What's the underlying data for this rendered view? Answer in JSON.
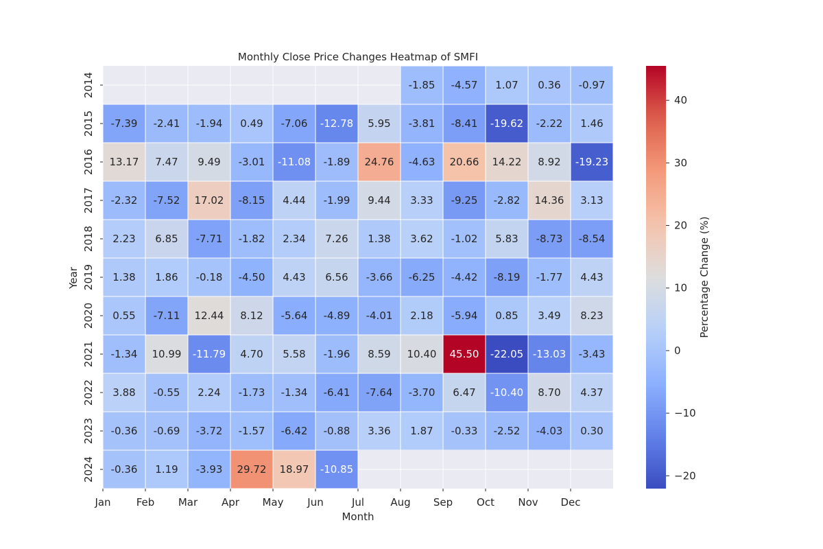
{
  "chart_data": {
    "type": "heatmap",
    "title": "Monthly Close Price Changes Heatmap of SMFI",
    "xlabel": "Month",
    "ylabel": "Year",
    "x_tick_labels": [
      "Jan",
      "Feb",
      "Mar",
      "Apr",
      "May",
      "Jun",
      "Jul",
      "Aug",
      "Sep",
      "Oct",
      "Nov",
      "Dec"
    ],
    "y_tick_labels": [
      "2014",
      "2015",
      "2016",
      "2017",
      "2018",
      "2019",
      "2020",
      "2021",
      "2022",
      "2023",
      "2024"
    ],
    "values": [
      [
        null,
        null,
        null,
        null,
        null,
        null,
        null,
        -1.85,
        -4.57,
        1.07,
        0.36,
        -0.97
      ],
      [
        -7.39,
        -2.41,
        -1.94,
        0.49,
        -7.06,
        -12.78,
        5.95,
        -3.81,
        -8.41,
        -19.62,
        -2.22,
        1.46
      ],
      [
        13.17,
        7.47,
        9.49,
        -3.01,
        -11.08,
        -1.89,
        24.76,
        -4.63,
        20.66,
        14.22,
        8.92,
        -19.23
      ],
      [
        -2.32,
        -7.52,
        17.02,
        -8.15,
        4.44,
        -1.99,
        9.44,
        3.33,
        -9.25,
        -2.82,
        14.36,
        3.13
      ],
      [
        2.23,
        6.85,
        -7.71,
        -1.82,
        2.34,
        7.26,
        1.38,
        3.62,
        -1.02,
        5.83,
        -8.73,
        -8.54
      ],
      [
        1.38,
        1.86,
        -0.18,
        -4.5,
        4.43,
        6.56,
        -3.66,
        -6.25,
        -4.42,
        -8.19,
        -1.77,
        4.43
      ],
      [
        0.55,
        -7.11,
        12.44,
        8.12,
        -5.64,
        -4.89,
        -4.01,
        2.18,
        -5.94,
        0.85,
        3.49,
        8.23
      ],
      [
        -1.34,
        10.99,
        -11.79,
        4.7,
        5.58,
        -1.96,
        8.59,
        10.4,
        45.5,
        -22.05,
        -13.03,
        -3.43
      ],
      [
        3.88,
        -0.55,
        2.24,
        -1.73,
        -1.34,
        -6.41,
        -7.64,
        -3.7,
        6.47,
        -10.4,
        8.7,
        4.37
      ],
      [
        -0.36,
        -0.69,
        -3.72,
        -1.57,
        -6.42,
        -0.88,
        3.36,
        1.87,
        -0.33,
        -2.52,
        -4.03,
        0.3
      ],
      [
        -0.36,
        1.19,
        -3.93,
        29.72,
        18.97,
        -10.85,
        null,
        null,
        null,
        null,
        null,
        null
      ]
    ],
    "value_range": [
      -22.05,
      45.5
    ],
    "colormap": "coolwarm",
    "missing_color": "#eaeaf2",
    "colorbar": {
      "label": "Percentage Change (%)",
      "ticks": [
        -20,
        -10,
        0,
        10,
        20,
        30,
        40
      ]
    },
    "grid": true
  }
}
